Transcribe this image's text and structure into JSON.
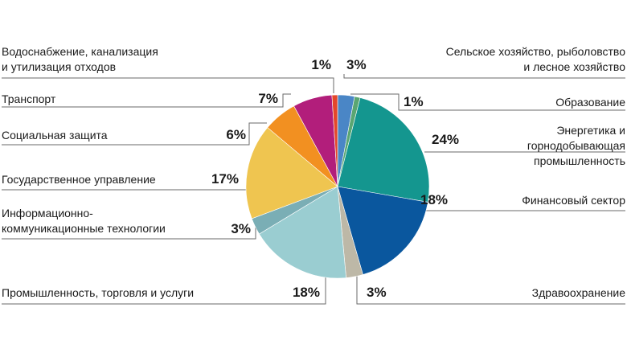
{
  "chart_data": {
    "type": "pie",
    "title": "",
    "start_angle_deg": 0,
    "direction": "clockwise",
    "slices": [
      {
        "label": "Сельское хозяйство, рыболовство и лесное хозяйство",
        "label_lines": [
          "Сельское хозяйство, рыболовство",
          "и лесное хозяйство"
        ],
        "value": 3,
        "value_label": "3%",
        "color": "#4a86c6"
      },
      {
        "label": "Образование",
        "label_lines": [
          "Образование"
        ],
        "value": 1,
        "value_label": "1%",
        "color": "#5aa672"
      },
      {
        "label": "Энергетика и горнодобывающая промышленность",
        "label_lines": [
          "Энергетика и",
          "горнодобывающая",
          "промышленность"
        ],
        "value": 24,
        "value_label": "24%",
        "color": "#14968f"
      },
      {
        "label": "Финансовый сектор",
        "label_lines": [
          "Финансовый сектор"
        ],
        "value": 18,
        "value_label": "18%",
        "color": "#0a579e"
      },
      {
        "label": "Здравоохранение",
        "label_lines": [
          "Здравоохранение"
        ],
        "value": 3,
        "value_label": "3%",
        "color": "#bdb8a7"
      },
      {
        "label": "Промышленность, торговля и услуги",
        "label_lines": [
          "Промышленность, торговля и услуги"
        ],
        "value": 18,
        "value_label": "18%",
        "color": "#9acdd1"
      },
      {
        "label": "Информационно-коммуникационные технологии",
        "label_lines": [
          "Информационно-",
          "коммуникационные технологии"
        ],
        "value": 3,
        "value_label": "3%",
        "color": "#7aaeb5"
      },
      {
        "label": "Государственное управление",
        "label_lines": [
          "Государственное управление"
        ],
        "value": 17,
        "value_label": "17%",
        "color": "#efc550"
      },
      {
        "label": "Социальная защита",
        "label_lines": [
          "Социальная защита"
        ],
        "value": 6,
        "value_label": "6%",
        "color": "#f29021"
      },
      {
        "label": "Транспорт",
        "label_lines": [
          "Транспорт"
        ],
        "value": 7,
        "value_label": "7%",
        "color": "#b21e7b"
      },
      {
        "label": "Водоснабжение, канализация и утилизация отходов",
        "label_lines": [
          "Водоснабжение, канализация",
          "и утилизация отходов"
        ],
        "value": 1,
        "value_label": "1%",
        "color": "#e4472a"
      }
    ]
  }
}
